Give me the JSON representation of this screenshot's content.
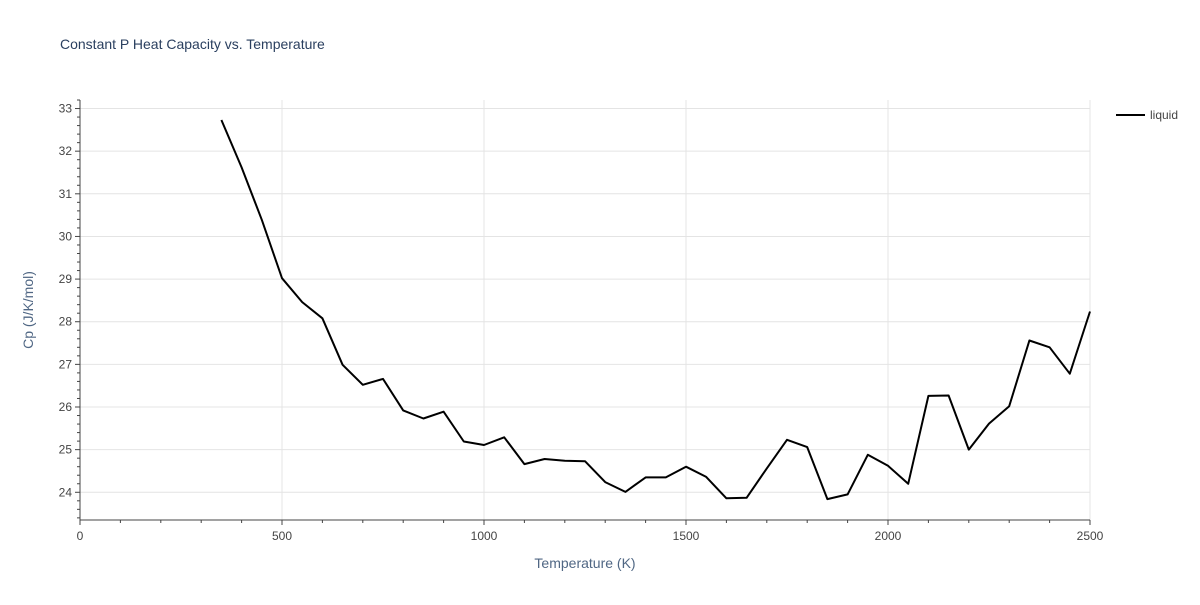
{
  "chart_data": {
    "type": "line",
    "title": "Constant P Heat Capacity vs. Temperature",
    "xlabel": "Temperature (K)",
    "ylabel": "Cp (J/K/mol)",
    "xlim": [
      0,
      2500
    ],
    "ylim": [
      23.35,
      33.2
    ],
    "x_ticks": [
      0,
      500,
      1000,
      1500,
      2000,
      2500
    ],
    "y_ticks": [
      24,
      25,
      26,
      27,
      28,
      29,
      30,
      31,
      32,
      33
    ],
    "grid": true,
    "legend_position": "top-right",
    "series": [
      {
        "name": "liquid",
        "color": "#000000",
        "x": [
          350,
          400,
          450,
          500,
          550,
          600,
          650,
          700,
          750,
          800,
          850,
          900,
          950,
          1000,
          1050,
          1100,
          1150,
          1200,
          1250,
          1300,
          1350,
          1400,
          1450,
          1500,
          1550,
          1600,
          1650,
          1700,
          1750,
          1800,
          1850,
          1900,
          1950,
          2000,
          2050,
          2100,
          2150,
          2200,
          2250,
          2300,
          2350,
          2400,
          2450,
          2500
        ],
        "y": [
          32.73,
          31.62,
          30.39,
          29.02,
          28.46,
          28.08,
          26.99,
          26.52,
          26.66,
          25.92,
          25.73,
          25.89,
          25.19,
          25.11,
          25.29,
          24.66,
          24.78,
          24.74,
          24.73,
          24.24,
          24.01,
          24.35,
          24.35,
          24.6,
          24.36,
          23.86,
          23.87,
          24.56,
          25.23,
          25.06,
          23.84,
          23.95,
          24.88,
          24.62,
          24.2,
          26.26,
          26.27,
          25.0,
          25.61,
          26.02,
          27.56,
          27.4,
          26.78,
          28.24
        ]
      }
    ]
  }
}
